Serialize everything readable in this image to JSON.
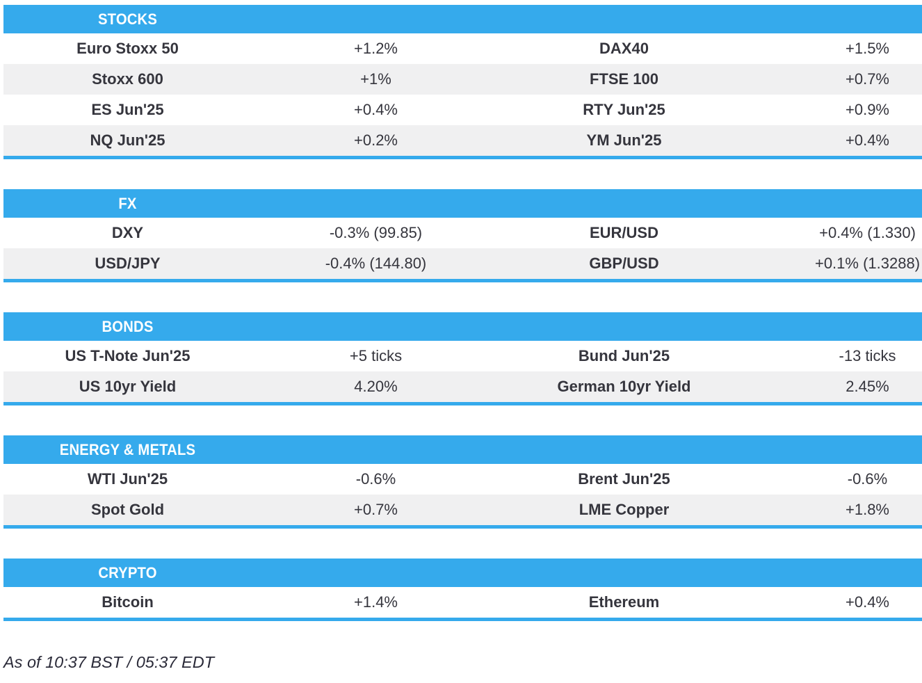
{
  "accent_color": "#35aaec",
  "row_alt_color": "#f0f0f1",
  "sections": [
    {
      "title": "STOCKS",
      "rows": [
        {
          "label1": "Euro Stoxx 50",
          "value1": "+1.2%",
          "label2": "DAX40",
          "value2": "+1.5%"
        },
        {
          "label1": "Stoxx 600",
          "value1": "+1%",
          "label2": "FTSE 100",
          "value2": "+0.7%"
        },
        {
          "label1": "ES Jun'25",
          "value1": "+0.4%",
          "label2": "RTY Jun'25",
          "value2": "+0.9%"
        },
        {
          "label1": "NQ Jun'25",
          "value1": "+0.2%",
          "label2": "YM Jun'25",
          "value2": "+0.4%"
        }
      ]
    },
    {
      "title": "FX",
      "rows": [
        {
          "label1": "DXY",
          "value1": "-0.3% (99.85)",
          "label2": "EUR/USD",
          "value2": "+0.4% (1.330)"
        },
        {
          "label1": "USD/JPY",
          "value1": "-0.4% (144.80)",
          "label2": "GBP/USD",
          "value2": "+0.1% (1.3288)"
        }
      ]
    },
    {
      "title": "BONDS",
      "rows": [
        {
          "label1": "US T-Note Jun'25",
          "value1": "+5 ticks",
          "label2": "Bund Jun'25",
          "value2": "-13 ticks"
        },
        {
          "label1": "US 10yr Yield",
          "value1": "4.20%",
          "label2": "German 10yr Yield",
          "value2": "2.45%"
        }
      ]
    },
    {
      "title": "ENERGY & METALS",
      "rows": [
        {
          "label1": "WTI Jun'25",
          "value1": "-0.6%",
          "label2": "Brent Jun'25",
          "value2": "-0.6%"
        },
        {
          "label1": "Spot Gold",
          "value1": "+0.7%",
          "label2": "LME Copper",
          "value2": "+1.8%"
        }
      ]
    },
    {
      "title": "CRYPTO",
      "rows": [
        {
          "label1": "Bitcoin",
          "value1": "+1.4%",
          "label2": "Ethereum",
          "value2": "+0.4%"
        }
      ]
    }
  ],
  "footer": {
    "as_of": "As of 10:37 BST / 05:37 EDT"
  }
}
